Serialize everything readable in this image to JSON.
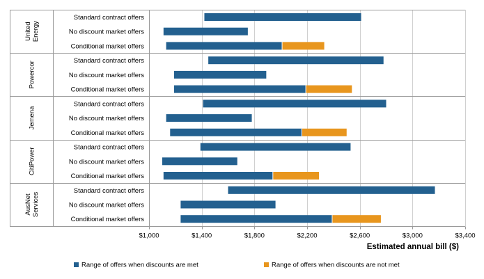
{
  "chart_data": {
    "type": "bar",
    "orientation": "horizontal",
    "stacked": true,
    "xlabel": "Estimated annual bill ($)",
    "xlim": [
      1000,
      3400
    ],
    "x_ticks": [
      1000,
      1400,
      1800,
      2200,
      2600,
      3000,
      3400
    ],
    "x_tick_labels": [
      "$1,000",
      "$1,400",
      "$1,800",
      "$2,200",
      "$2,600",
      "$3,000",
      "$3,400"
    ],
    "grid": "vertical",
    "legend_position": "bottom",
    "colors": {
      "met": "#23608f",
      "not_met": "#e8961e"
    },
    "legend": [
      {
        "label": "Range of offers when discounts are met",
        "color": "#23608f"
      },
      {
        "label": "Range of offers when discounts are not met",
        "color": "#e8961e"
      }
    ],
    "groups": [
      {
        "name": "United Energy",
        "name_lines": [
          "United",
          "Energy"
        ],
        "bars": [
          {
            "label": "Standard contract offers",
            "met": [
              1420,
              2610
            ],
            "not_met": null
          },
          {
            "label": "No discount market offers",
            "met": [
              1110,
              1750
            ],
            "not_met": null
          },
          {
            "label": "Conditional market offers",
            "met": [
              1130,
              2010
            ],
            "not_met": [
              2010,
              2330
            ]
          }
        ]
      },
      {
        "name": "Powercor",
        "name_lines": [
          "Powercor"
        ],
        "bars": [
          {
            "label": "Standard contract offers",
            "met": [
              1450,
              2780
            ],
            "not_met": null
          },
          {
            "label": "No discount market offers",
            "met": [
              1190,
              1890
            ],
            "not_met": null
          },
          {
            "label": "Conditional market offers",
            "met": [
              1190,
              2190
            ],
            "not_met": [
              2190,
              2540
            ]
          }
        ]
      },
      {
        "name": "Jemena",
        "name_lines": [
          "Jemena"
        ],
        "bars": [
          {
            "label": "Standard contract offers",
            "met": [
              1410,
              2800
            ],
            "not_met": null
          },
          {
            "label": "No discount market offers",
            "met": [
              1130,
              1780
            ],
            "not_met": null
          },
          {
            "label": "Conditional market offers",
            "met": [
              1160,
              2160
            ],
            "not_met": [
              2160,
              2500
            ]
          }
        ]
      },
      {
        "name": "CitiPower",
        "name_lines": [
          "CitiPower"
        ],
        "bars": [
          {
            "label": "Standard contract offers",
            "met": [
              1390,
              2530
            ],
            "not_met": null
          },
          {
            "label": "No discount market offers",
            "met": [
              1100,
              1670
            ],
            "not_met": null
          },
          {
            "label": "Conditional market offers",
            "met": [
              1110,
              1940
            ],
            "not_met": [
              1940,
              2290
            ]
          }
        ]
      },
      {
        "name": "AusNet Services",
        "name_lines": [
          "AusNet",
          "Services"
        ],
        "bars": [
          {
            "label": "Standard contract offers",
            "met": [
              1600,
              3170
            ],
            "not_met": null
          },
          {
            "label": "No discount market offers",
            "met": [
              1240,
              1960
            ],
            "not_met": null
          },
          {
            "label": "Conditional market offers",
            "met": [
              1240,
              2390
            ],
            "not_met": [
              2390,
              2760
            ]
          }
        ]
      }
    ]
  }
}
